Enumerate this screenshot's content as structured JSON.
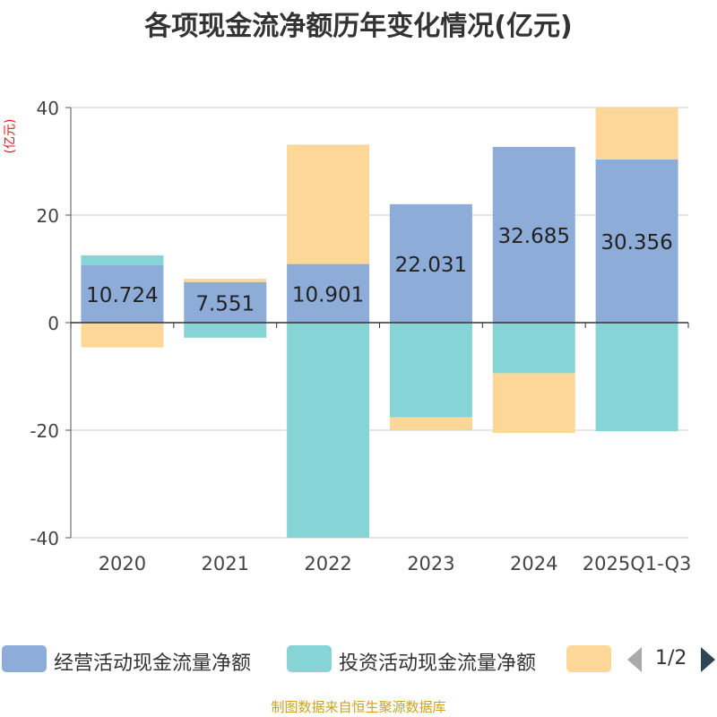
{
  "chart_data": {
    "type": "bar",
    "stacked": true,
    "title": "各项现金流净额历年变化情况(亿元)",
    "ylabel": "(亿元)",
    "ylim": [
      -40,
      40
    ],
    "yticks": [
      -40,
      -20,
      0,
      20,
      40
    ],
    "categories": [
      "2020",
      "2021",
      "2022",
      "2023",
      "2024",
      "2025Q1-Q3"
    ],
    "series": [
      {
        "name": "经营活动现金流量净额",
        "color": "#8eacd8",
        "values": [
          10.724,
          7.551,
          10.901,
          22.031,
          32.685,
          30.356
        ]
      },
      {
        "name": "投资活动现金流量净额",
        "color": "#86d4d6",
        "values": [
          1.8,
          -2.8,
          -40.0,
          -17.6,
          -9.4,
          -20.2
        ]
      },
      {
        "name": "",
        "color": "#fdd797",
        "values": [
          -4.6,
          0.6,
          22.2,
          -2.3,
          -11.1,
          9.6
        ]
      }
    ],
    "data_labels": [
      "10.724",
      "7.551",
      "10.901",
      "22.031",
      "32.685",
      "30.356"
    ]
  },
  "legend": {
    "items": [
      "经营活动现金流量净额",
      "投资活动现金流量净额",
      ""
    ],
    "page": "1/2"
  },
  "source": "制图数据来自恒生聚源数据库"
}
